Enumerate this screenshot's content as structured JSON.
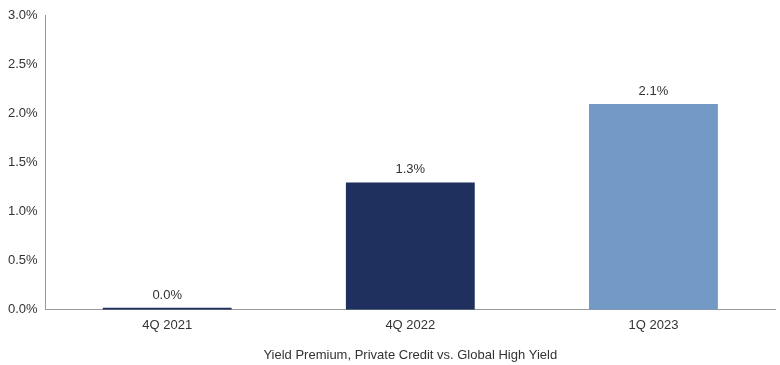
{
  "chart_data": {
    "type": "bar",
    "x_label": "Yield Premium, Private Credit vs. Global High Yield",
    "categories": [
      "4Q 2021",
      "4Q 2022",
      "1Q 2023"
    ],
    "values": [
      0.0,
      1.3,
      2.1
    ],
    "value_labels": [
      "0.0%",
      "1.3%",
      "2.1%"
    ],
    "colors": [
      "#1f2f5e",
      "#1f2f5e",
      "#7399c6"
    ],
    "ylim": [
      0,
      3
    ],
    "yticks": [
      {
        "value": 0,
        "label": "0.0%"
      },
      {
        "value": 0.5,
        "label": "0.5%"
      },
      {
        "value": 1,
        "label": "1.0%"
      },
      {
        "value": 1.5,
        "label": "1.5%"
      },
      {
        "value": 2,
        "label": "2.0%"
      },
      {
        "value": 2.5,
        "label": "2.5%"
      },
      {
        "value": 3,
        "label": "3.0%"
      }
    ],
    "grid": false,
    "data_labels": true
  }
}
